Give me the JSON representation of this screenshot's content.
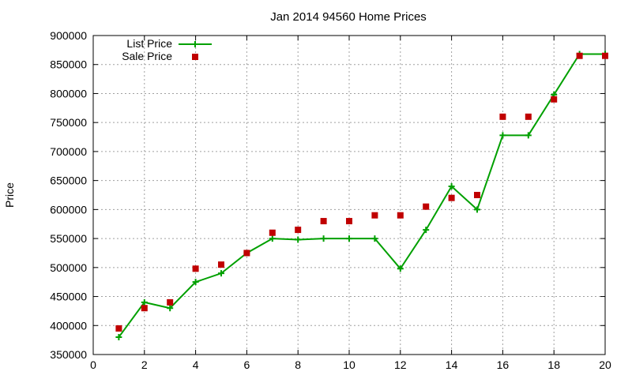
{
  "chart_data": {
    "type": "line",
    "title": "Jan 2014 94560 Home Prices",
    "xlabel": "",
    "ylabel": "Price",
    "xlim": [
      0,
      20
    ],
    "ylim": [
      350000,
      900000
    ],
    "x_ticks": [
      "0",
      "2",
      "4",
      "6",
      "8",
      "10",
      "12",
      "14",
      "16",
      "18",
      "20"
    ],
    "y_ticks": [
      "350000",
      "400000",
      "450000",
      "500000",
      "550000",
      "600000",
      "650000",
      "700000",
      "750000",
      "800000",
      "850000",
      "900000"
    ],
    "grid": true,
    "legend_position": "top-left",
    "series": [
      {
        "name": "List Price",
        "style": "line-with-plus-markers",
        "color": "#00a000",
        "x": [
          1,
          2,
          3,
          4,
          5,
          6,
          7,
          8,
          9,
          10,
          11,
          12,
          13,
          14,
          15,
          16,
          17,
          18,
          19,
          20
        ],
        "values": [
          380000,
          440000,
          430000,
          475000,
          490000,
          525000,
          550000,
          548000,
          550000,
          550000,
          550000,
          498000,
          565000,
          640000,
          600000,
          728000,
          728000,
          798000,
          868000,
          868000
        ]
      },
      {
        "name": "Sale Price",
        "style": "square-markers",
        "color": "#c00000",
        "x": [
          1,
          2,
          3,
          4,
          5,
          6,
          7,
          8,
          9,
          10,
          11,
          12,
          13,
          14,
          15,
          16,
          17,
          18,
          19,
          20
        ],
        "values": [
          395000,
          430000,
          440000,
          498000,
          505000,
          525000,
          560000,
          565000,
          580000,
          580000,
          590000,
          590000,
          605000,
          620000,
          625000,
          760000,
          760000,
          790000,
          865000,
          865000
        ]
      }
    ]
  }
}
